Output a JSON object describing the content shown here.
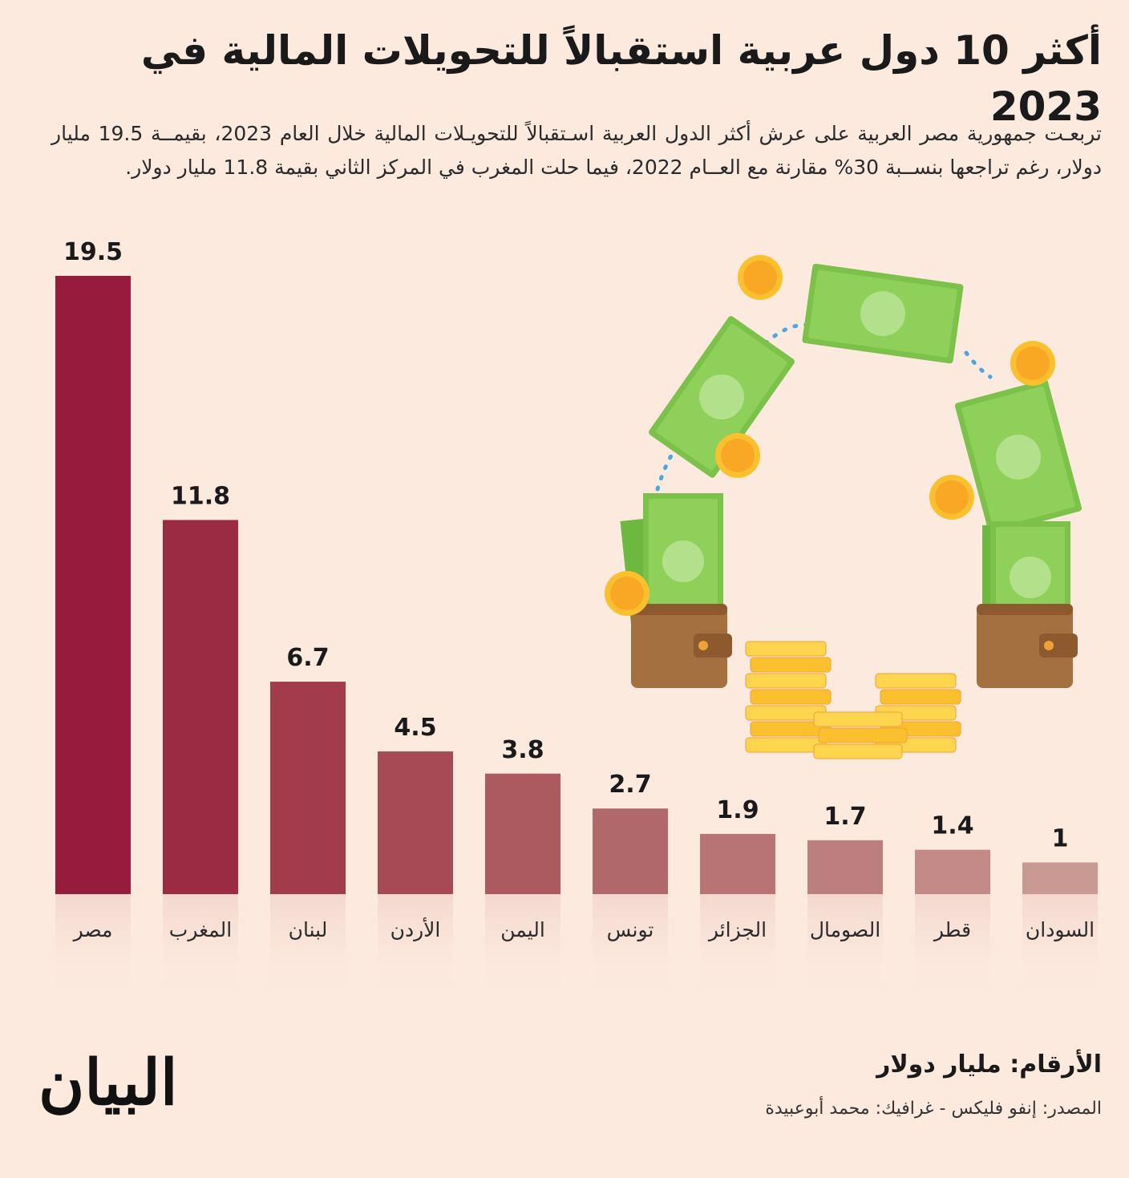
{
  "title": "أكثر 10 دول عربية استقبالاً للتحويلات المالية في 2023",
  "subtitle": "تربعـت جمهورية مصر العربية على عرش أكثر الدول العربية اسـتقبالاً للتحويـلات المالية خلال العام 2023، بقيمــة 19.5 مليار دولار، رغم تراجعها بنســبة 30% مقارنة مع العــام 2022، فيما حلت المغرب في المركز الثاني بقيمة 11.8 مليار دولار.",
  "units_label": "الأرقام: مليار دولار",
  "source_label": "المصدر: إنفو فليكس - غرافيك: محمد أبوعبيدة",
  "logo_text": "البيان",
  "chart_data": {
    "type": "bar",
    "categories": [
      "مصر",
      "المغرب",
      "لبنان",
      "الأردن",
      "اليمن",
      "تونس",
      "الجزائر",
      "الصومال",
      "قطر",
      "السودان"
    ],
    "values": [
      19.5,
      11.8,
      6.7,
      4.5,
      3.8,
      2.7,
      1.9,
      1.7,
      1.4,
      1
    ],
    "value_labels": [
      "19.5",
      "11.8",
      "6.7",
      "4.5",
      "3.8",
      "2.7",
      "1.9",
      "1.7",
      "1.4",
      "1"
    ],
    "colors": [
      "#951d3b",
      "#9b2a43",
      "#a23b4b",
      "#a74a55",
      "#ac5a60",
      "#b1686b",
      "#b87474",
      "#bc7e7e",
      "#c38a87",
      "#c99a94"
    ],
    "ylim": [
      0,
      19.5
    ],
    "grid": false,
    "legend": "none"
  }
}
